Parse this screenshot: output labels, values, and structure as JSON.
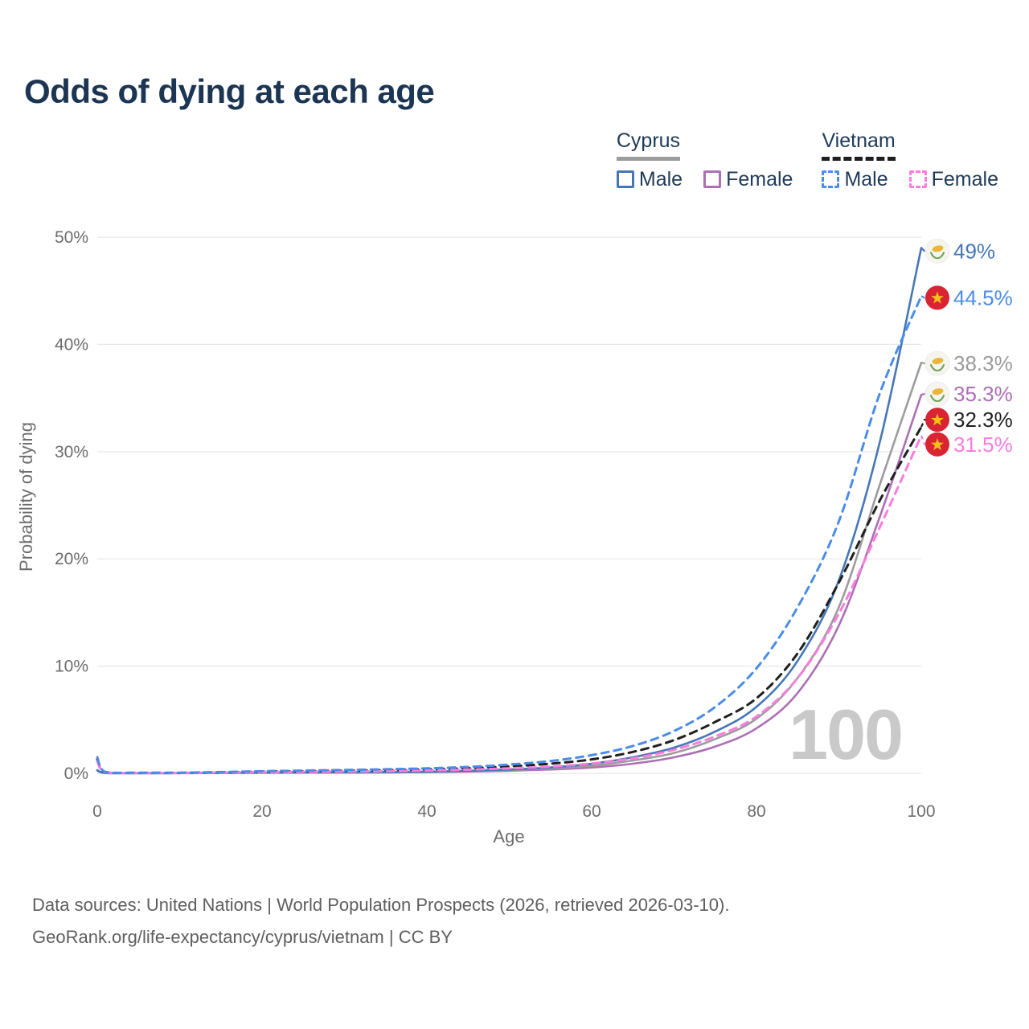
{
  "watermark": "100",
  "footer": {
    "line1": "Data sources: United Nations | World Population Prospects (2026, retrieved 2026-03-10).",
    "line2": "GeoRank.org/life-expectancy/cyprus/vietnam | CC BY"
  },
  "legend": {
    "groups": [
      {
        "country": "Cyprus",
        "underline_color": "#9c9c9c",
        "underline_style": "solid",
        "items": [
          {
            "label": "Male",
            "color": "#4577b8",
            "style": "solid"
          },
          {
            "label": "Female",
            "color": "#ad6fb5",
            "style": "solid"
          }
        ]
      },
      {
        "country": "Vietnam",
        "underline_color": "#1f1f1f",
        "underline_style": "dashed",
        "items": [
          {
            "label": "Male",
            "color": "#4b8ce8",
            "style": "dashed"
          },
          {
            "label": "Female",
            "color": "#f97ddf",
            "style": "dashed"
          }
        ]
      }
    ]
  },
  "colors": {
    "title": "#1b3552",
    "legend_text": "#203b57",
    "axis_text": "#6d6d6d",
    "grid": "#e8e8e8",
    "watermark": "#c9c9c9",
    "footer_text": "#5e5e5e",
    "cyprus_flag_bg": "#f5f4ee",
    "cyprus_flag_island": "#e9b53a",
    "cyprus_flag_branches": "#6fa458",
    "vietnam_flag_bg": "#d92433",
    "vietnam_flag_star": "#f4c01e"
  },
  "chart_data": {
    "type": "line",
    "title": "Odds of dying at each age",
    "xlabel": "Age",
    "ylabel": "Probability of dying",
    "y_unit": "percent",
    "xlim": [
      0,
      100
    ],
    "ylim": [
      0,
      50
    ],
    "grid": "horizontal-only",
    "legend_position": "top-right",
    "x_ticks": [
      0,
      20,
      40,
      60,
      80,
      100
    ],
    "y_ticks": [
      {
        "value": 0,
        "label": "0%"
      },
      {
        "value": 10,
        "label": "10%"
      },
      {
        "value": 20,
        "label": "20%"
      },
      {
        "value": 30,
        "label": "30%"
      },
      {
        "value": 40,
        "label": "40%"
      },
      {
        "value": 50,
        "label": "50%"
      }
    ],
    "x": [
      0,
      1,
      5,
      10,
      15,
      20,
      25,
      30,
      35,
      40,
      45,
      50,
      55,
      60,
      65,
      70,
      75,
      80,
      85,
      90,
      95,
      100
    ],
    "series": [
      {
        "name": "Cyprus Female",
        "country": "Cyprus",
        "sex": "Female",
        "color": "#ad6fb5",
        "dashed": false,
        "flag": "cyprus",
        "end_label": "35.3%",
        "end_value": 35.3,
        "label_dy": -1,
        "values": [
          0.25,
          0.025,
          0.012,
          0.015,
          0.025,
          0.045,
          0.055,
          0.065,
          0.08,
          0.11,
          0.16,
          0.24,
          0.36,
          0.55,
          0.9,
          1.5,
          2.5,
          4.2,
          7.5,
          13.8,
          24,
          35.3
        ]
      },
      {
        "name": "Cyprus Both sexes",
        "country": "Cyprus",
        "sex": "Both",
        "color": "#9c9c9c",
        "dashed": false,
        "flag": "cyprus",
        "end_label": "38.3%",
        "end_value": 38.3,
        "label_dy": 1,
        "values": [
          0.28,
          0.028,
          0.014,
          0.018,
          0.033,
          0.06,
          0.08,
          0.09,
          0.1,
          0.13,
          0.2,
          0.3,
          0.45,
          0.72,
          1.2,
          1.9,
          3.2,
          5.1,
          8.9,
          15.5,
          27,
          38.3
        ]
      },
      {
        "name": "Cyprus Male",
        "country": "Cyprus",
        "sex": "Male",
        "color": "#4577b8",
        "dashed": false,
        "flag": "cyprus",
        "end_label": "49%",
        "end_value": 49,
        "label_dy": 4,
        "values": [
          0.3,
          0.03,
          0.015,
          0.02,
          0.04,
          0.08,
          0.1,
          0.11,
          0.13,
          0.16,
          0.24,
          0.36,
          0.55,
          0.9,
          1.5,
          2.4,
          3.9,
          6.2,
          10.5,
          18,
          31,
          49
        ]
      },
      {
        "name": "Vietnam Both sexes",
        "country": "Vietnam",
        "sex": "Both",
        "color": "#1f1f1f",
        "dashed": true,
        "flag": "vietnam",
        "end_label": "32.3%",
        "end_value": 32.3,
        "label_dy": -9,
        "values": [
          1.3,
          0.1,
          0.05,
          0.05,
          0.1,
          0.16,
          0.2,
          0.25,
          0.3,
          0.37,
          0.48,
          0.65,
          0.9,
          1.3,
          2.0,
          3.1,
          4.8,
          7.0,
          11.2,
          17.8,
          25.5,
          32.3
        ]
      },
      {
        "name": "Vietnam Female",
        "country": "Vietnam",
        "sex": "Female",
        "color": "#f97ddf",
        "dashed": true,
        "flag": "vietnam",
        "end_label": "31.5%",
        "end_value": 31.5,
        "label_dy": 11,
        "values": [
          1.1,
          0.09,
          0.04,
          0.04,
          0.07,
          0.11,
          0.14,
          0.17,
          0.21,
          0.27,
          0.35,
          0.47,
          0.63,
          0.92,
          1.4,
          2.2,
          3.45,
          5.3,
          8.9,
          14.9,
          23,
          31.5
        ]
      },
      {
        "name": "Vietnam Male",
        "country": "Vietnam",
        "sex": "Male",
        "color": "#4b8ce8",
        "dashed": true,
        "flag": "vietnam",
        "end_label": "44.5%",
        "end_value": 44.5,
        "label_dy": 2,
        "values": [
          1.5,
          0.12,
          0.06,
          0.06,
          0.12,
          0.2,
          0.26,
          0.32,
          0.38,
          0.47,
          0.6,
          0.82,
          1.15,
          1.7,
          2.55,
          3.95,
          6.2,
          9.8,
          15.5,
          23.5,
          35.5,
          44.5
        ]
      }
    ]
  }
}
